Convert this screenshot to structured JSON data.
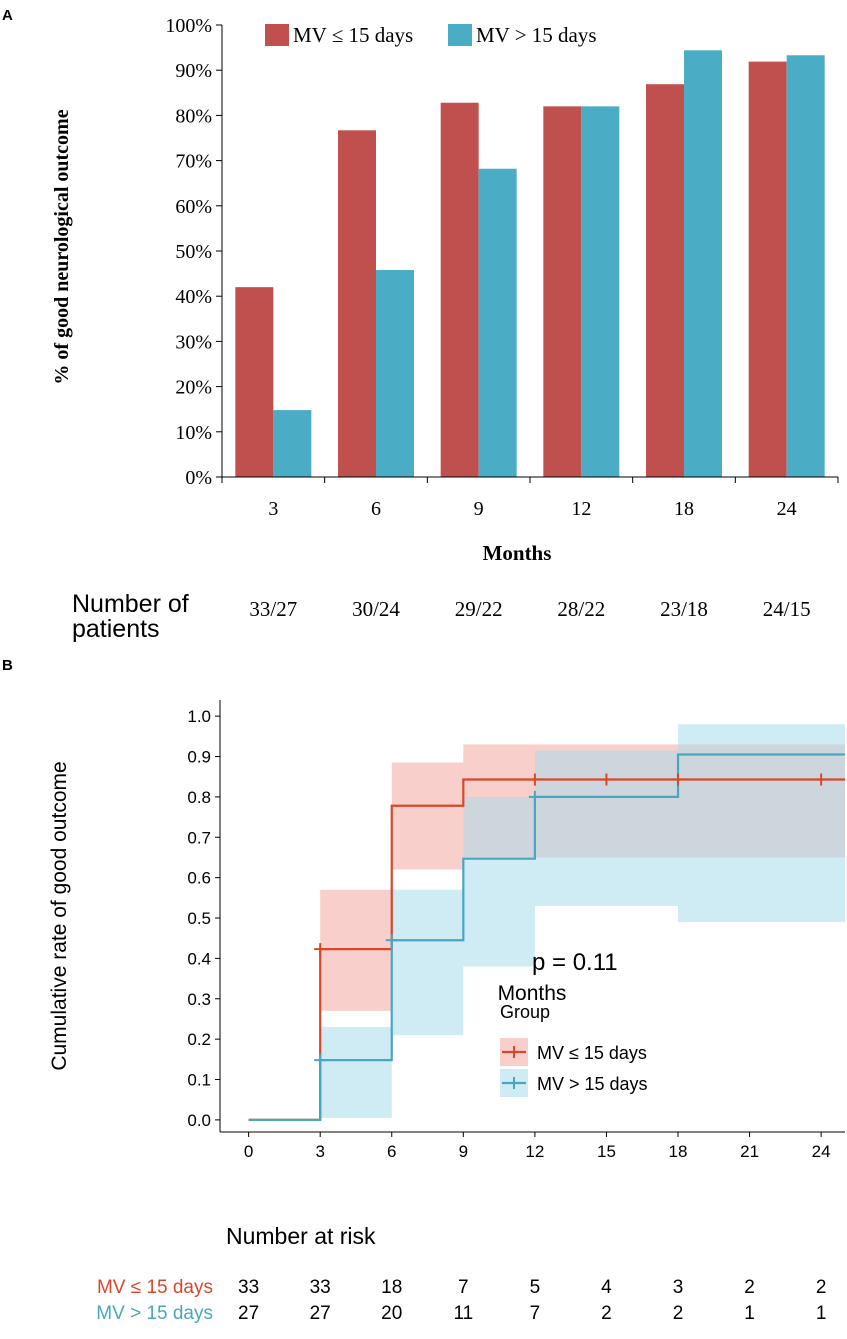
{
  "colors": {
    "mv_le_bar": "#c0504d",
    "mv_gt_bar": "#4bacc6",
    "mv_le_line": "#d9472b",
    "mv_gt_line": "#4aa6c0",
    "mv_le_band": "#f4a8a0",
    "mv_gt_band": "#a7dceb",
    "axis": "#000000"
  },
  "panel_a": {
    "label": "A",
    "patients_label_line1": "Number of",
    "patients_label_line2": "patients"
  },
  "panel_b": {
    "label": "B",
    "p_value": "p = 0.11",
    "legend_title": "Group",
    "risk_table": {
      "title": "Number at risk",
      "rows": [
        {
          "label": "MV ≤ 15 days",
          "values": [
            "33",
            "33",
            "18",
            "7",
            "5",
            "4",
            "3",
            "2",
            "2"
          ]
        },
        {
          "label": "MV > 15 days",
          "values": [
            "27",
            "27",
            "20",
            "11",
            "7",
            "2",
            "2",
            "1",
            "1"
          ]
        }
      ]
    }
  },
  "chart_data": [
    {
      "type": "bar",
      "title": "",
      "xlabel": "Months",
      "ylabel": "% of good neurological outcome",
      "categories": [
        "3",
        "6",
        "9",
        "12",
        "18",
        "24"
      ],
      "ylim": [
        0,
        100
      ],
      "y_ticks": [
        "0%",
        "10%",
        "20%",
        "30%",
        "40%",
        "50%",
        "60%",
        "70%",
        "80%",
        "90%",
        "100%"
      ],
      "legend_position": "top",
      "series": [
        {
          "name": "MV ≤ 15 days",
          "values": [
            42,
            76.7,
            82.8,
            82,
            86.9,
            91.9
          ]
        },
        {
          "name": "MV > 15 days",
          "values": [
            14.8,
            45.8,
            68.2,
            82,
            94.4,
            93.3
          ]
        }
      ],
      "patients": [
        "33/27",
        "30/24",
        "29/22",
        "28/22",
        "23/18",
        "24/15"
      ]
    },
    {
      "type": "line",
      "subtype": "kaplan-meier cumulative incidence",
      "title": "",
      "xlabel": "Months",
      "ylabel": "Cumulative rate of good outcome",
      "xlim": [
        -1.2,
        25
      ],
      "ylim": [
        -0.03,
        1.04
      ],
      "x_ticks": [
        "0",
        "3",
        "6",
        "9",
        "12",
        "15",
        "18",
        "21",
        "24"
      ],
      "y_ticks": [
        "0.0",
        "0.1",
        "0.2",
        "0.3",
        "0.4",
        "0.5",
        "0.6",
        "0.7",
        "0.8",
        "0.9",
        "1.0"
      ],
      "legend_position": "center-right",
      "series": [
        {
          "name": "MV ≤ 15 days",
          "x": [
            0,
            3,
            6,
            9,
            25
          ],
          "y": [
            0,
            0.423,
            0.778,
            0.843,
            0.843
          ],
          "ci_lower": [
            0,
            0.27,
            0.62,
            0.65,
            0.65
          ],
          "ci_upper": [
            0,
            0.57,
            0.885,
            0.93,
            0.93
          ],
          "censor_x": [
            3,
            12,
            15,
            18,
            24
          ]
        },
        {
          "name": "MV > 15 days",
          "x": [
            0,
            3,
            6,
            9,
            12,
            18,
            25
          ],
          "y": [
            0,
            0.148,
            0.445,
            0.647,
            0.8,
            0.905,
            0.905
          ],
          "ci_lower": [
            0,
            0.005,
            0.21,
            0.38,
            0.53,
            0.49,
            0.49
          ],
          "ci_upper": [
            0,
            0.23,
            0.57,
            0.8,
            0.915,
            0.98,
            0.98
          ],
          "censor_x": [
            3,
            6,
            12
          ]
        }
      ]
    }
  ]
}
